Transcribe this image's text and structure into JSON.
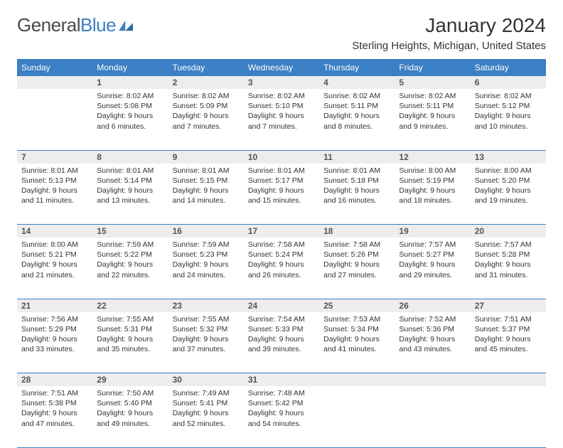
{
  "brand": {
    "text1": "General",
    "text2": "Blue"
  },
  "title": "January 2024",
  "location": "Sterling Heights, Michigan, United States",
  "colors": {
    "header_bg": "#3b7fc4",
    "header_text": "#ffffff",
    "daynum_bg": "#ededed",
    "daynum_text": "#555555",
    "cell_text": "#333333",
    "rule": "#3b7fc4",
    "page_bg": "#ffffff"
  },
  "typography": {
    "body_size": 10.5,
    "daynum_size": 12,
    "header_size": 12,
    "title_size": 28,
    "location_size": 15
  },
  "dow": [
    "Sunday",
    "Monday",
    "Tuesday",
    "Wednesday",
    "Thursday",
    "Friday",
    "Saturday"
  ],
  "weeks": [
    [
      null,
      {
        "n": "1",
        "sr": "8:02 AM",
        "ss": "5:08 PM",
        "dl1": "9 hours",
        "dl2": "and 6 minutes."
      },
      {
        "n": "2",
        "sr": "8:02 AM",
        "ss": "5:09 PM",
        "dl1": "9 hours",
        "dl2": "and 7 minutes."
      },
      {
        "n": "3",
        "sr": "8:02 AM",
        "ss": "5:10 PM",
        "dl1": "9 hours",
        "dl2": "and 7 minutes."
      },
      {
        "n": "4",
        "sr": "8:02 AM",
        "ss": "5:11 PM",
        "dl1": "9 hours",
        "dl2": "and 8 minutes."
      },
      {
        "n": "5",
        "sr": "8:02 AM",
        "ss": "5:11 PM",
        "dl1": "9 hours",
        "dl2": "and 9 minutes."
      },
      {
        "n": "6",
        "sr": "8:02 AM",
        "ss": "5:12 PM",
        "dl1": "9 hours",
        "dl2": "and 10 minutes."
      }
    ],
    [
      {
        "n": "7",
        "sr": "8:01 AM",
        "ss": "5:13 PM",
        "dl1": "9 hours",
        "dl2": "and 11 minutes."
      },
      {
        "n": "8",
        "sr": "8:01 AM",
        "ss": "5:14 PM",
        "dl1": "9 hours",
        "dl2": "and 13 minutes."
      },
      {
        "n": "9",
        "sr": "8:01 AM",
        "ss": "5:15 PM",
        "dl1": "9 hours",
        "dl2": "and 14 minutes."
      },
      {
        "n": "10",
        "sr": "8:01 AM",
        "ss": "5:17 PM",
        "dl1": "9 hours",
        "dl2": "and 15 minutes."
      },
      {
        "n": "11",
        "sr": "8:01 AM",
        "ss": "5:18 PM",
        "dl1": "9 hours",
        "dl2": "and 16 minutes."
      },
      {
        "n": "12",
        "sr": "8:00 AM",
        "ss": "5:19 PM",
        "dl1": "9 hours",
        "dl2": "and 18 minutes."
      },
      {
        "n": "13",
        "sr": "8:00 AM",
        "ss": "5:20 PM",
        "dl1": "9 hours",
        "dl2": "and 19 minutes."
      }
    ],
    [
      {
        "n": "14",
        "sr": "8:00 AM",
        "ss": "5:21 PM",
        "dl1": "9 hours",
        "dl2": "and 21 minutes."
      },
      {
        "n": "15",
        "sr": "7:59 AM",
        "ss": "5:22 PM",
        "dl1": "9 hours",
        "dl2": "and 22 minutes."
      },
      {
        "n": "16",
        "sr": "7:59 AM",
        "ss": "5:23 PM",
        "dl1": "9 hours",
        "dl2": "and 24 minutes."
      },
      {
        "n": "17",
        "sr": "7:58 AM",
        "ss": "5:24 PM",
        "dl1": "9 hours",
        "dl2": "and 26 minutes."
      },
      {
        "n": "18",
        "sr": "7:58 AM",
        "ss": "5:26 PM",
        "dl1": "9 hours",
        "dl2": "and 27 minutes."
      },
      {
        "n": "19",
        "sr": "7:57 AM",
        "ss": "5:27 PM",
        "dl1": "9 hours",
        "dl2": "and 29 minutes."
      },
      {
        "n": "20",
        "sr": "7:57 AM",
        "ss": "5:28 PM",
        "dl1": "9 hours",
        "dl2": "and 31 minutes."
      }
    ],
    [
      {
        "n": "21",
        "sr": "7:56 AM",
        "ss": "5:29 PM",
        "dl1": "9 hours",
        "dl2": "and 33 minutes."
      },
      {
        "n": "22",
        "sr": "7:55 AM",
        "ss": "5:31 PM",
        "dl1": "9 hours",
        "dl2": "and 35 minutes."
      },
      {
        "n": "23",
        "sr": "7:55 AM",
        "ss": "5:32 PM",
        "dl1": "9 hours",
        "dl2": "and 37 minutes."
      },
      {
        "n": "24",
        "sr": "7:54 AM",
        "ss": "5:33 PM",
        "dl1": "9 hours",
        "dl2": "and 39 minutes."
      },
      {
        "n": "25",
        "sr": "7:53 AM",
        "ss": "5:34 PM",
        "dl1": "9 hours",
        "dl2": "and 41 minutes."
      },
      {
        "n": "26",
        "sr": "7:52 AM",
        "ss": "5:36 PM",
        "dl1": "9 hours",
        "dl2": "and 43 minutes."
      },
      {
        "n": "27",
        "sr": "7:51 AM",
        "ss": "5:37 PM",
        "dl1": "9 hours",
        "dl2": "and 45 minutes."
      }
    ],
    [
      {
        "n": "28",
        "sr": "7:51 AM",
        "ss": "5:38 PM",
        "dl1": "9 hours",
        "dl2": "and 47 minutes."
      },
      {
        "n": "29",
        "sr": "7:50 AM",
        "ss": "5:40 PM",
        "dl1": "9 hours",
        "dl2": "and 49 minutes."
      },
      {
        "n": "30",
        "sr": "7:49 AM",
        "ss": "5:41 PM",
        "dl1": "9 hours",
        "dl2": "and 52 minutes."
      },
      {
        "n": "31",
        "sr": "7:48 AM",
        "ss": "5:42 PM",
        "dl1": "9 hours",
        "dl2": "and 54 minutes."
      },
      null,
      null,
      null
    ]
  ],
  "labels": {
    "sunrise": "Sunrise:",
    "sunset": "Sunset:",
    "daylight": "Daylight:"
  }
}
